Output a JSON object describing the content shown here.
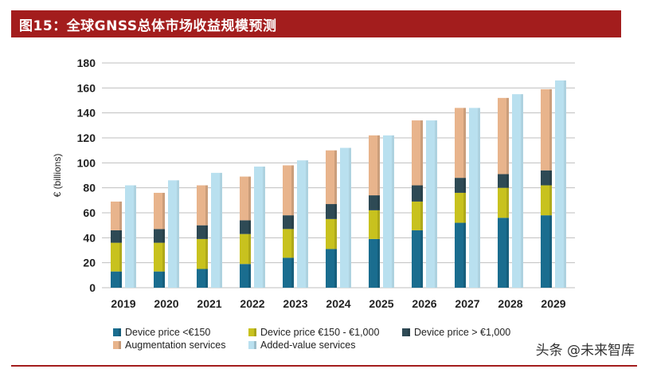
{
  "header": {
    "title": "图15：全球GNSS总体市场收益规模预测"
  },
  "watermark": {
    "text": "头条 @未来智库"
  },
  "colors": {
    "title_bg": "#a31d1d",
    "device_low": "#1a6d8f",
    "device_mid": "#c8c21e",
    "device_high": "#2e4a55",
    "augmentation": "#e8b48c",
    "added_value": "#b9e0ef"
  },
  "chart_data": {
    "type": "bar",
    "title": "",
    "xlabel": "",
    "ylabel": "€ (billions)",
    "ylim": [
      0,
      180
    ],
    "yticks": [
      0,
      20,
      40,
      60,
      80,
      100,
      120,
      140,
      160,
      180
    ],
    "categories": [
      "2019",
      "2020",
      "2021",
      "2022",
      "2023",
      "2024",
      "2025",
      "2026",
      "2027",
      "2028",
      "2029"
    ],
    "stacked_series": [
      {
        "name": "Device price <€150",
        "color": "#1a6d8f",
        "values": [
          13,
          13,
          15,
          19,
          24,
          31,
          39,
          46,
          52,
          56,
          58
        ]
      },
      {
        "name": "Device price €150 - €1,000",
        "color": "#c8c21e",
        "values": [
          23,
          23,
          24,
          24,
          23,
          24,
          23,
          23,
          24,
          24,
          24
        ]
      },
      {
        "name": "Device price > €1,000",
        "color": "#2e4a55",
        "values": [
          10,
          11,
          11,
          11,
          11,
          12,
          12,
          13,
          12,
          11,
          12
        ]
      },
      {
        "name": "Augmentation services",
        "color": "#e8b48c",
        "values": [
          23,
          29,
          32,
          35,
          40,
          43,
          48,
          52,
          56,
          61,
          65
        ]
      }
    ],
    "added_value_series": {
      "name": "Added-value services",
      "color": "#b9e0ef",
      "values": [
        82,
        86,
        92,
        97,
        102,
        112,
        122,
        134,
        144,
        155,
        166
      ]
    },
    "legend": [
      {
        "label": "Device price <€150",
        "color": "#1a6d8f"
      },
      {
        "label": "Device price €150 - €1,000",
        "color": "#c8c21e"
      },
      {
        "label": "Device price > €1,000",
        "color": "#2e4a55"
      },
      {
        "label": "Augmentation services",
        "color": "#e8b48c"
      },
      {
        "label": "Added-value services",
        "color": "#b9e0ef"
      }
    ],
    "legend_position": "bottom",
    "grid": true
  }
}
